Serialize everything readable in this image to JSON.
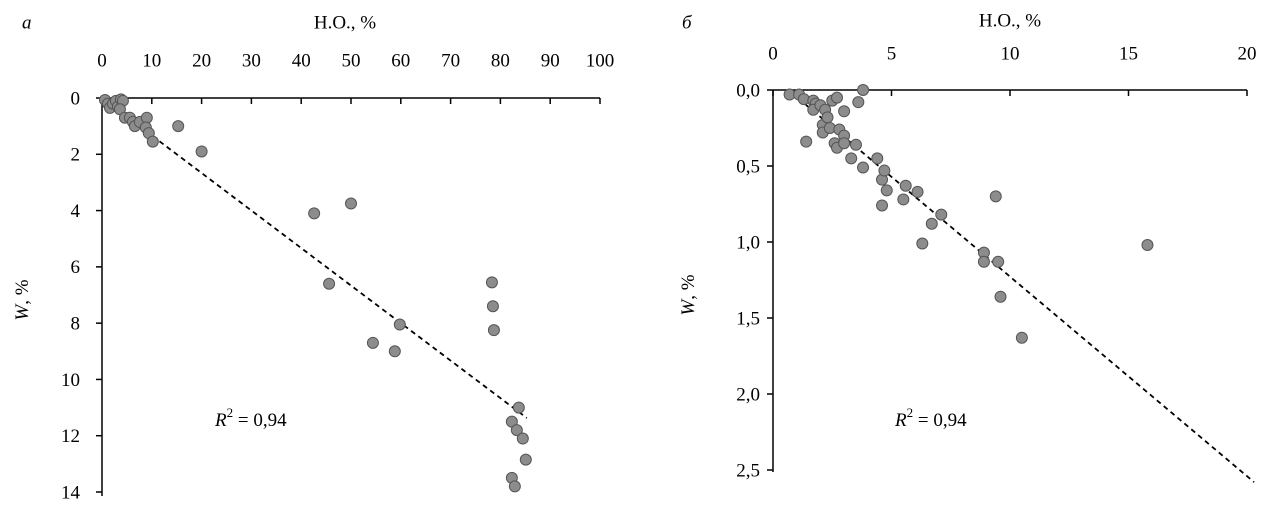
{
  "chart_data": [
    {
      "type": "scatter",
      "panel": "а",
      "xlabel": "Н.О., %",
      "ylabel": {
        "symbol": "W",
        "text": ", %"
      },
      "annotation": {
        "symbol": "R",
        "exponent": "2",
        "text": " = 0,94"
      },
      "x_axis_position": "top",
      "y_reversed": true,
      "color": "#8c8c8c",
      "xlim": [
        0,
        100
      ],
      "xticks": [
        0,
        10,
        20,
        30,
        40,
        50,
        60,
        70,
        80,
        90,
        100
      ],
      "ylim": [
        0,
        14
      ],
      "yticks": [
        0,
        2,
        4,
        6,
        8,
        10,
        12,
        14
      ],
      "x": [
        0.6,
        1.2,
        1.6,
        2.2,
        2.8,
        3.2,
        3.8,
        4.2,
        3.6,
        4.6,
        5.6,
        6.2,
        6.6,
        7.6,
        9,
        8.8,
        9.4,
        10.2,
        15.3,
        20,
        42.6,
        50,
        45.6,
        59.8,
        54.4,
        58.8,
        78.3,
        78.5,
        78.7,
        83.7,
        82.3,
        83.3,
        84.5,
        85.1,
        82.3,
        82.9
      ],
      "values": [
        0.07,
        0.2,
        0.35,
        0.2,
        0.1,
        0.3,
        0.05,
        0.1,
        0.4,
        0.7,
        0.7,
        0.85,
        1.0,
        0.85,
        0.7,
        1.05,
        1.25,
        1.55,
        1.0,
        1.9,
        4.1,
        3.75,
        6.6,
        8.05,
        8.7,
        9.0,
        6.55,
        7.4,
        8.25,
        11.0,
        11.5,
        11.8,
        12.1,
        12.85,
        13.5,
        13.8
      ],
      "trend": {
        "x": [
          0,
          85.3
        ],
        "values": [
          0,
          11.37
        ]
      }
    },
    {
      "type": "scatter",
      "panel": "б",
      "xlabel": "Н.О., %",
      "ylabel": {
        "symbol": "W",
        "text": ", %"
      },
      "annotation": {
        "symbol": "R",
        "exponent": "2",
        "text": " = 0,94"
      },
      "x_axis_position": "top",
      "y_reversed": true,
      "color": "#8c8c8c",
      "xlim": [
        0,
        20
      ],
      "xticks": [
        0,
        5,
        10,
        15,
        20
      ],
      "ylim": [
        0,
        2.5
      ],
      "yticks": [
        {
          "value": 0,
          "label": "0,0"
        },
        {
          "value": 0.5,
          "label": "0,5"
        },
        {
          "value": 1,
          "label": "1,0"
        },
        {
          "value": 1.5,
          "label": "1,5"
        },
        {
          "value": 2,
          "label": "2,0"
        },
        {
          "value": 2.5,
          "label": "2,5"
        }
      ],
      "x": [
        0.7,
        1.1,
        1.3,
        1.7,
        1.8,
        1.7,
        2.0,
        2.2,
        2.5,
        2.7,
        3.0,
        3.6,
        3.8,
        1.4,
        2.1,
        2.3,
        2.1,
        2.4,
        2.6,
        2.8,
        3.0,
        2.7,
        3.0,
        3.5,
        3.3,
        3.8,
        4.4,
        4.6,
        4.7,
        4.8,
        5.6,
        5.5,
        6.1,
        4.6,
        7.1,
        6.7,
        6.3,
        8.9,
        8.9,
        9.5,
        9.4,
        9.6,
        10.5,
        15.8
      ],
      "values": [
        0.03,
        0.03,
        0.06,
        0.07,
        0.09,
        0.13,
        0.1,
        0.13,
        0.07,
        0.05,
        0.14,
        0.08,
        0.0,
        0.34,
        0.23,
        0.18,
        0.28,
        0.25,
        0.35,
        0.26,
        0.3,
        0.38,
        0.35,
        0.36,
        0.45,
        0.51,
        0.45,
        0.59,
        0.53,
        0.66,
        0.63,
        0.72,
        0.67,
        0.76,
        0.82,
        0.88,
        1.01,
        1.07,
        1.13,
        1.13,
        0.7,
        1.36,
        1.63,
        1.02
      ],
      "trend": {
        "x": [
          0.8,
          20.3
        ],
        "values": [
          0.02,
          2.58
        ]
      }
    }
  ]
}
